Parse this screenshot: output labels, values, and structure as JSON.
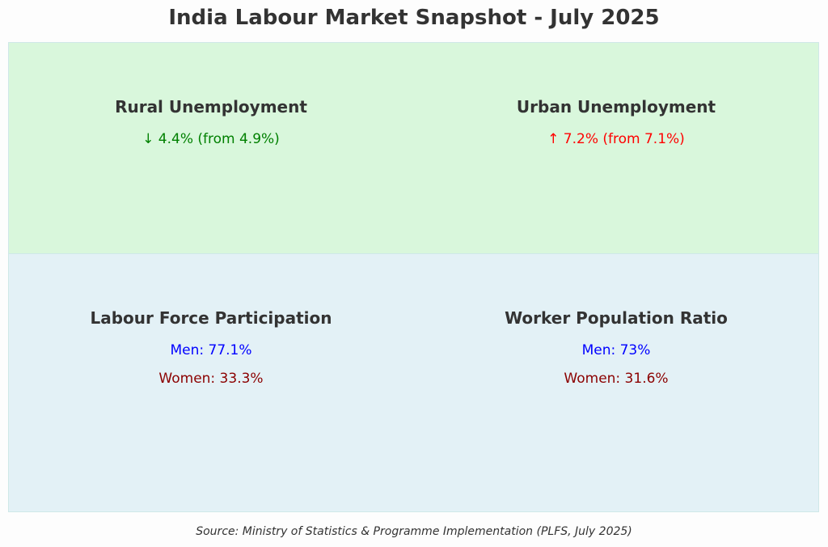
{
  "title": "India Labour Market Snapshot - July 2025",
  "source": "Source: Ministry of Statistics & Programme Implementation (PLFS, July 2025)",
  "colors": {
    "top_panel_bg": "#d9f7dc",
    "bottom_panel_bg": "#e3f1f6",
    "decrease_green": "#008000",
    "increase_red": "#ff0000",
    "men_blue": "#0000ff",
    "women_darkred": "#8b0000",
    "text_dark": "#333333"
  },
  "chart_data": {
    "type": "table",
    "panels": [
      {
        "title": "Rural Unemployment",
        "lines": [
          {
            "text": "↓ 4.4% (from 4.9%)",
            "direction": "down",
            "value": 4.4,
            "previous": 4.9,
            "unit": "%",
            "color": "#008000"
          }
        ]
      },
      {
        "title": "Urban Unemployment",
        "lines": [
          {
            "text": "↑ 7.2% (from 7.1%)",
            "direction": "up",
            "value": 7.2,
            "previous": 7.1,
            "unit": "%",
            "color": "#ff0000"
          }
        ]
      },
      {
        "title": "Labour Force Participation",
        "lines": [
          {
            "text": "Men: 77.1%",
            "group": "Men",
            "value": 77.1,
            "unit": "%",
            "color": "#0000ff"
          },
          {
            "text": "Women: 33.3%",
            "group": "Women",
            "value": 33.3,
            "unit": "%",
            "color": "#8b0000"
          }
        ]
      },
      {
        "title": "Worker Population Ratio",
        "lines": [
          {
            "text": "Men: 73%",
            "group": "Men",
            "value": 73,
            "unit": "%",
            "color": "#0000ff"
          },
          {
            "text": "Women: 31.6%",
            "group": "Women",
            "value": 31.6,
            "unit": "%",
            "color": "#8b0000"
          }
        ]
      }
    ]
  }
}
